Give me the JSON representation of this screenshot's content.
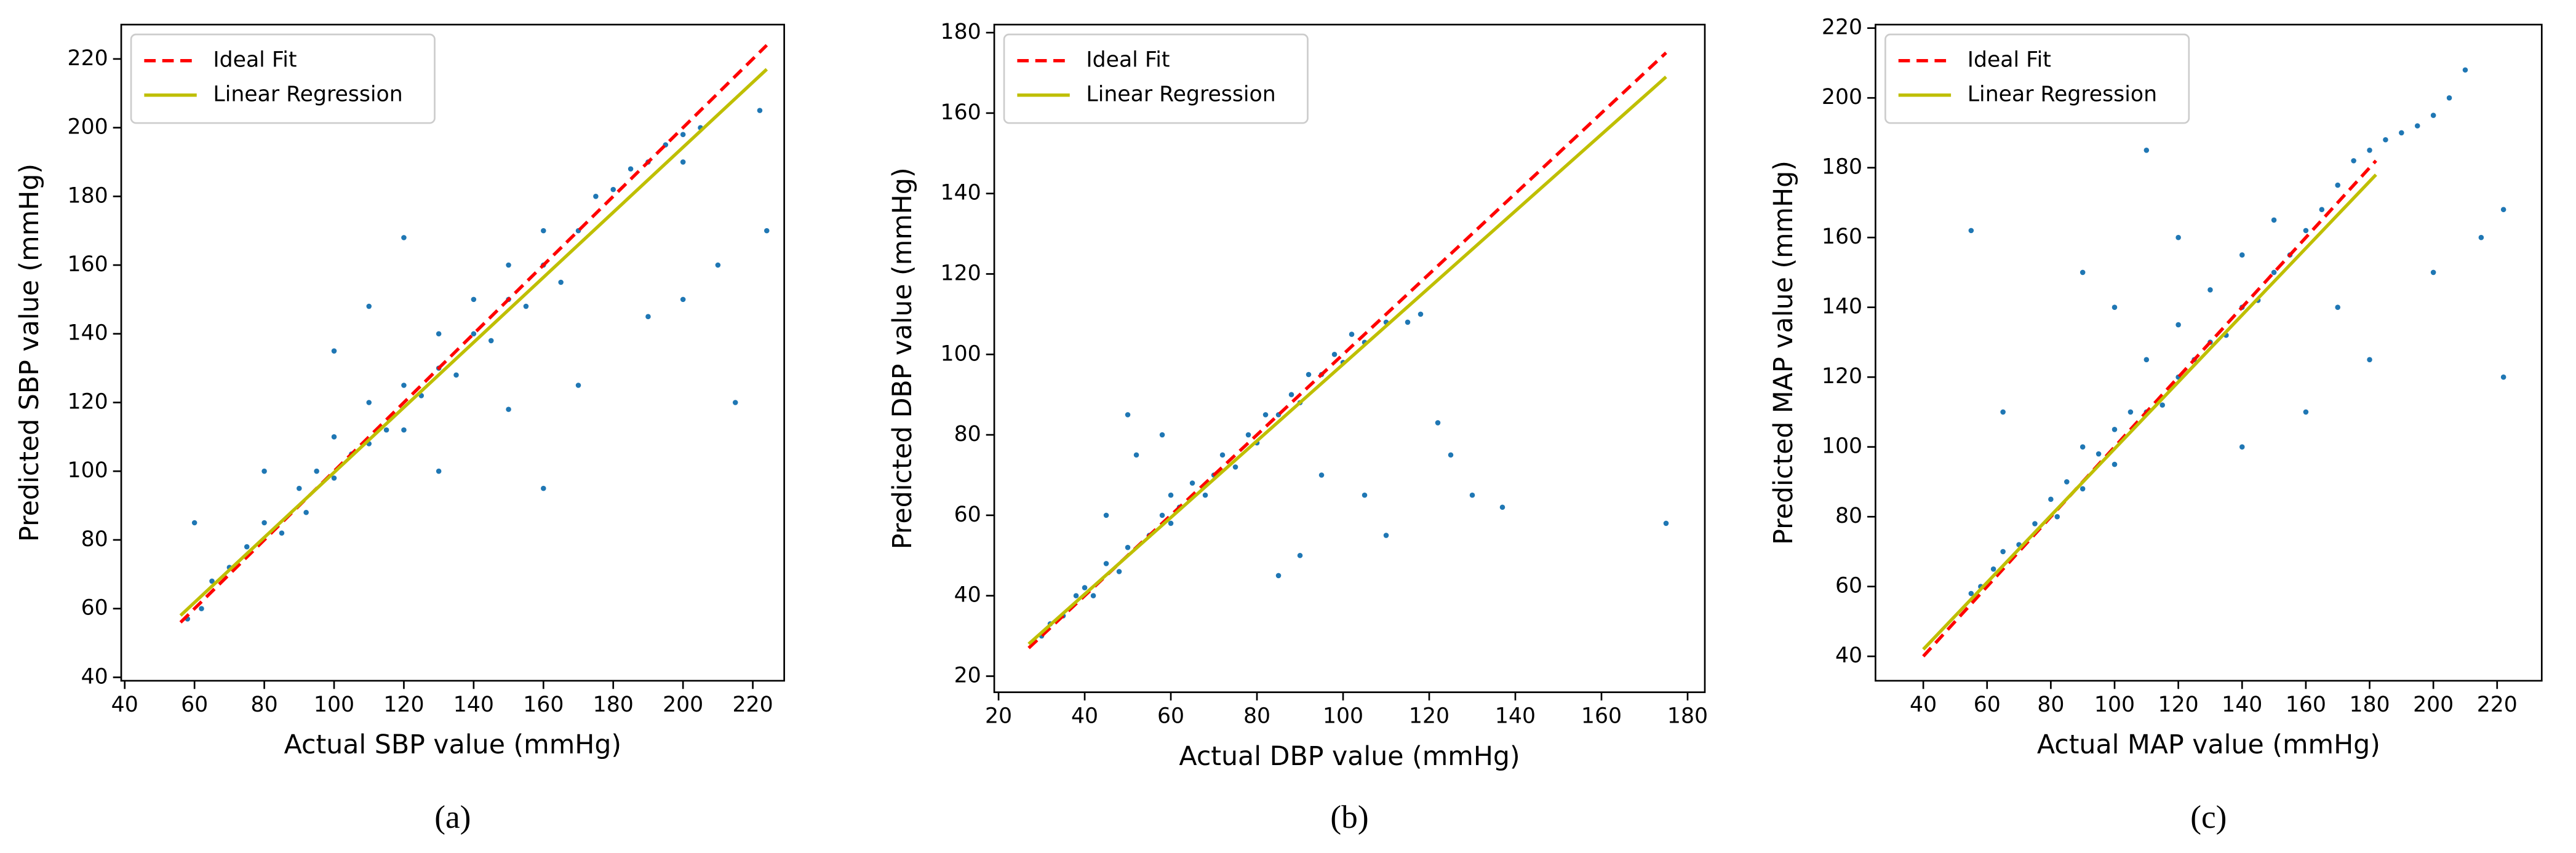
{
  "chart_data": [
    {
      "type": "scatter",
      "xlabel": "Actual SBP value (mmHg)",
      "ylabel": "Predicted SBP value (mmHg)",
      "caption": "(a)",
      "xlim": [
        39,
        229
      ],
      "ylim": [
        39,
        230
      ],
      "xticks": [
        40,
        60,
        80,
        100,
        120,
        140,
        160,
        180,
        200,
        220
      ],
      "yticks": [
        40,
        60,
        80,
        100,
        120,
        140,
        160,
        180,
        200,
        220
      ],
      "legend": "upper left",
      "points": {
        "color": "#1f77b4",
        "x": [
          58,
          62,
          65,
          70,
          75,
          80,
          85,
          90,
          92,
          95,
          100,
          100,
          105,
          110,
          110,
          115,
          120,
          120,
          125,
          130,
          130,
          135,
          140,
          140,
          145,
          150,
          150,
          155,
          160,
          160,
          165,
          170,
          175,
          180,
          185,
          190,
          195,
          200,
          200,
          205,
          60,
          80,
          110,
          120,
          130,
          170,
          190,
          200,
          215,
          224,
          222,
          210,
          150,
          100,
          160
        ],
        "values": [
          57,
          60,
          68,
          72,
          78,
          85,
          82,
          95,
          88,
          100,
          98,
          110,
          105,
          108,
          120,
          112,
          125,
          112,
          122,
          130,
          140,
          128,
          140,
          150,
          138,
          150,
          160,
          148,
          160,
          170,
          155,
          170,
          180,
          182,
          188,
          190,
          195,
          198,
          190,
          200,
          85,
          100,
          148,
          168,
          100,
          125,
          145,
          150,
          120,
          170,
          205,
          160,
          118,
          135,
          95
        ]
      },
      "lines": [
        {
          "name": "Ideal Fit",
          "color": "#ff0000",
          "style": "dashed",
          "x": [
            56,
            224
          ],
          "values": [
            56,
            224
          ]
        },
        {
          "name": "Linear Regression",
          "color": "#bfbf00",
          "style": "solid",
          "x": [
            56,
            224
          ],
          "values": [
            58,
            217
          ]
        }
      ]
    },
    {
      "type": "scatter",
      "xlabel": "Actual DBP value (mmHg)",
      "ylabel": "Predicted DBP value (mmHg)",
      "caption": "(b)",
      "xlim": [
        19,
        184
      ],
      "ylim": [
        16,
        182
      ],
      "xticks": [
        20,
        40,
        60,
        80,
        100,
        120,
        140,
        160,
        180
      ],
      "yticks": [
        20,
        40,
        60,
        80,
        100,
        120,
        140,
        160,
        180
      ],
      "legend": "upper left",
      "points": {
        "color": "#1f77b4",
        "x": [
          30,
          32,
          35,
          38,
          40,
          42,
          45,
          48,
          50,
          50,
          52,
          55,
          58,
          60,
          60,
          62,
          65,
          68,
          70,
          72,
          75,
          78,
          80,
          82,
          85,
          88,
          90,
          92,
          95,
          98,
          100,
          102,
          105,
          110,
          115,
          118,
          85,
          90,
          105,
          110,
          122,
          125,
          130,
          137,
          175,
          45,
          58,
          95
        ],
        "values": [
          30,
          33,
          35,
          40,
          42,
          40,
          48,
          46,
          52,
          85,
          75,
          55,
          60,
          58,
          65,
          62,
          68,
          65,
          70,
          75,
          72,
          80,
          78,
          85,
          85,
          90,
          88,
          95,
          95,
          100,
          98,
          105,
          103,
          108,
          108,
          110,
          45,
          50,
          65,
          55,
          83,
          75,
          65,
          62,
          58,
          60,
          80,
          70
        ]
      },
      "lines": [
        {
          "name": "Ideal Fit",
          "color": "#ff0000",
          "style": "dashed",
          "x": [
            27,
            175
          ],
          "values": [
            27,
            175
          ]
        },
        {
          "name": "Linear Regression",
          "color": "#bfbf00",
          "style": "solid",
          "x": [
            27,
            175
          ],
          "values": [
            28,
            169
          ]
        }
      ]
    },
    {
      "type": "scatter",
      "xlabel": "Actual MAP value (mmHg)",
      "ylabel": "Predicted MAP value (mmHg)",
      "caption": "(c)",
      "xlim": [
        25,
        234
      ],
      "ylim": [
        33,
        221
      ],
      "xticks": [
        40,
        60,
        80,
        100,
        120,
        140,
        160,
        180,
        200,
        220
      ],
      "yticks": [
        40,
        60,
        80,
        100,
        120,
        140,
        160,
        180,
        200,
        220
      ],
      "legend": "upper left",
      "points": {
        "color": "#1f77b4",
        "x": [
          55,
          58,
          62,
          65,
          70,
          75,
          80,
          82,
          85,
          90,
          90,
          95,
          100,
          100,
          105,
          110,
          110,
          115,
          120,
          120,
          125,
          130,
          130,
          135,
          140,
          140,
          145,
          150,
          150,
          155,
          160,
          165,
          170,
          175,
          180,
          185,
          190,
          195,
          200,
          205,
          210,
          55,
          90,
          100,
          110,
          140,
          160,
          180,
          200,
          215,
          222,
          222,
          65,
          120,
          170
        ],
        "values": [
          58,
          60,
          65,
          70,
          72,
          78,
          85,
          80,
          90,
          88,
          100,
          98,
          105,
          95,
          110,
          110,
          125,
          112,
          120,
          135,
          125,
          130,
          145,
          132,
          140,
          155,
          142,
          150,
          165,
          155,
          162,
          168,
          175,
          182,
          185,
          188,
          190,
          192,
          195,
          200,
          208,
          162,
          150,
          140,
          185,
          100,
          110,
          125,
          150,
          160,
          120,
          168,
          110,
          160,
          140
        ]
      },
      "lines": [
        {
          "name": "Ideal Fit",
          "color": "#ff0000",
          "style": "dashed",
          "x": [
            40,
            182
          ],
          "values": [
            40,
            182
          ]
        },
        {
          "name": "Linear Regression",
          "color": "#bfbf00",
          "style": "solid",
          "x": [
            40,
            182
          ],
          "values": [
            42,
            178
          ]
        }
      ]
    }
  ]
}
